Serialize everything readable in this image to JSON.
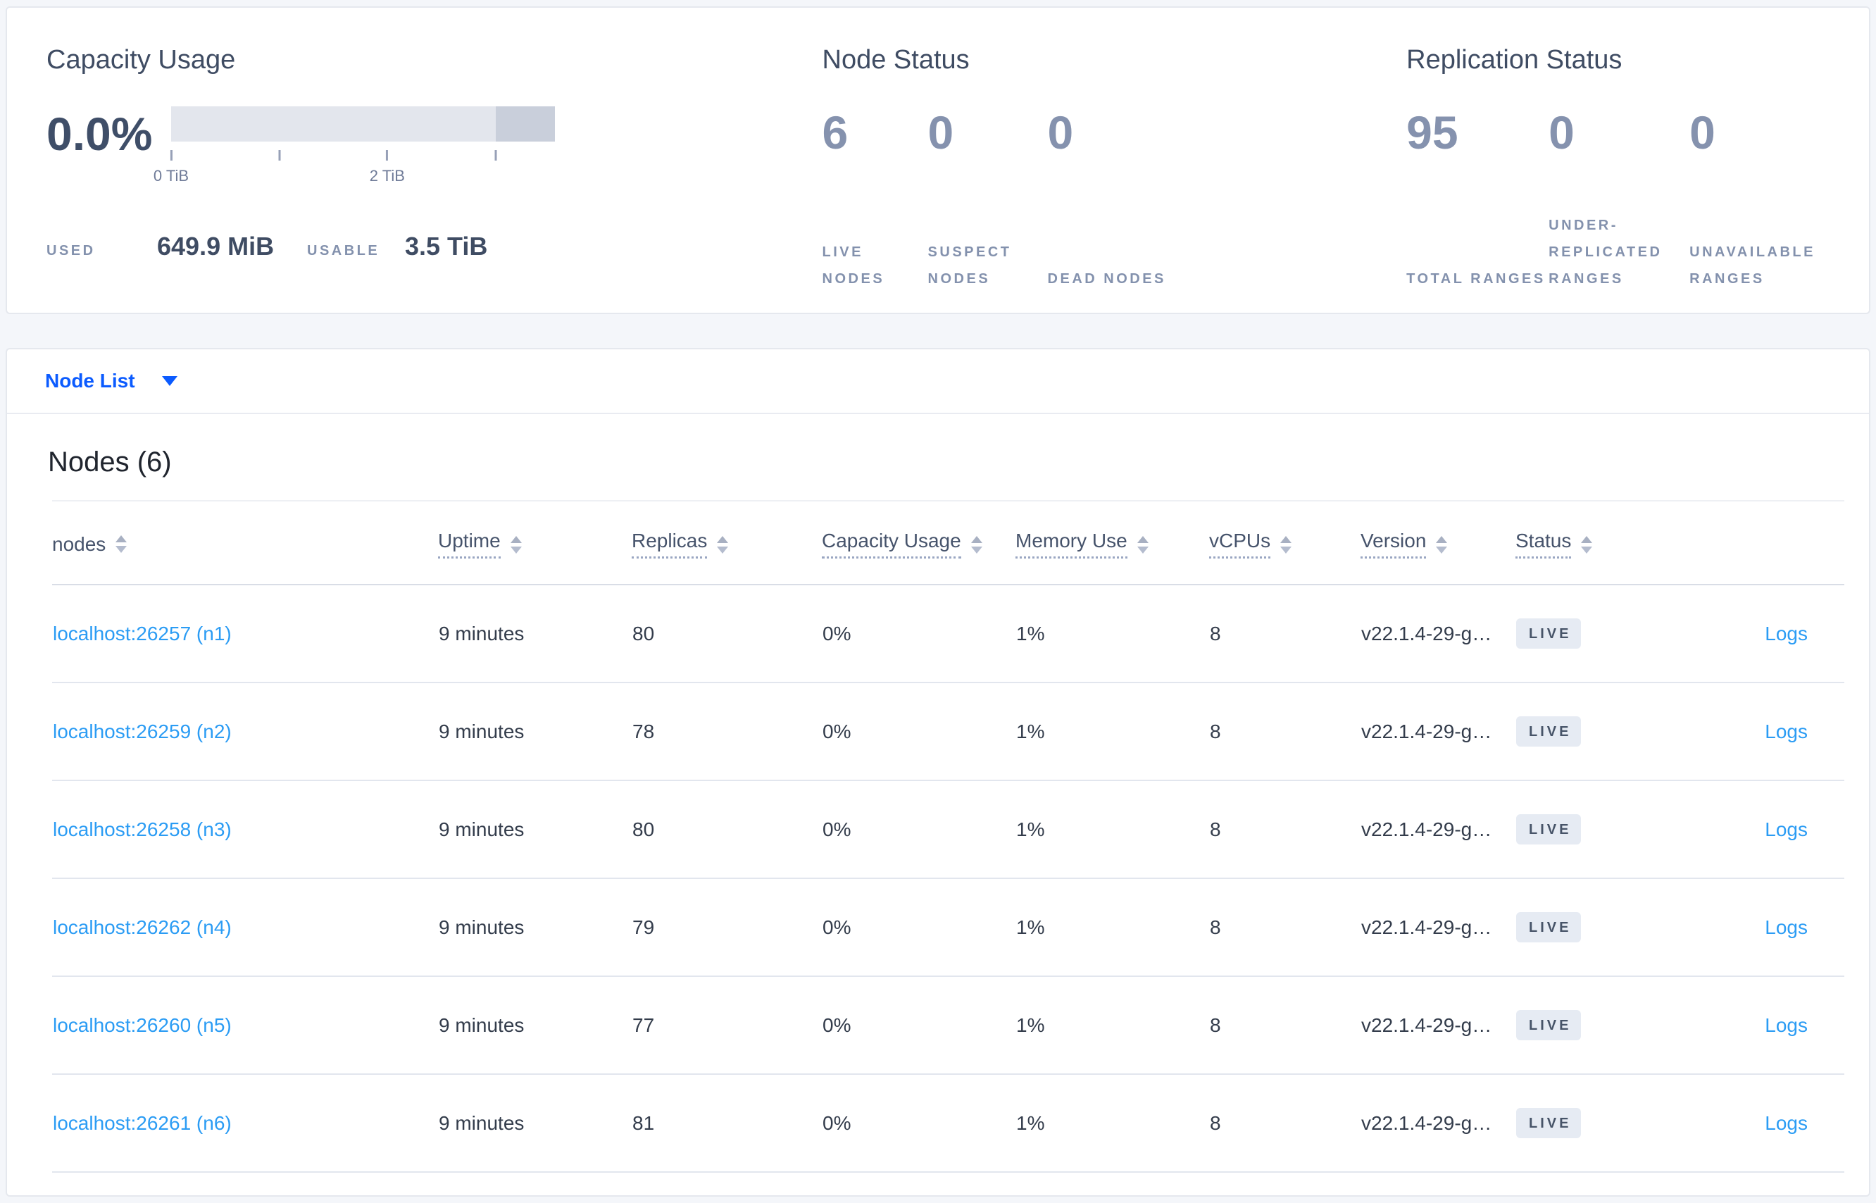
{
  "summary": {
    "capacity": {
      "title": "Capacity Usage",
      "used_percent": "0.0%",
      "used_label": "USED",
      "used_value": "649.9 MiB",
      "usable_label": "USABLE",
      "usable_value": "3.5 TiB",
      "chart": {
        "type": "bar",
        "unit": "TiB",
        "axis_range_tib": [
          0,
          3.55
        ],
        "ticks": [
          {
            "pos_pct": 0,
            "label": "0 TiB"
          },
          {
            "pos_pct": 28.2,
            "label": ""
          },
          {
            "pos_pct": 56.3,
            "label": "2 TiB"
          },
          {
            "pos_pct": 84.6,
            "label": ""
          }
        ],
        "dark_from_pct": 84.6,
        "track_color": "#e3e6ed",
        "segment_color": "#c9cfdb"
      }
    },
    "node_status": {
      "title": "Node Status",
      "stats": [
        {
          "value": "6",
          "label": "LIVE NODES"
        },
        {
          "value": "0",
          "label": "SUSPECT NODES"
        },
        {
          "value": "0",
          "label": "DEAD NODES"
        }
      ]
    },
    "replication": {
      "title": "Replication Status",
      "stats": [
        {
          "value": "95",
          "label": "TOTAL RANGES"
        },
        {
          "value": "0",
          "label": "UNDER-REPLICATED RANGES"
        },
        {
          "value": "0",
          "label": "UNAVAILABLE RANGES"
        }
      ]
    }
  },
  "view_switcher": {
    "selected": "Node List",
    "caret_icon": "caret-down-icon"
  },
  "nodes": {
    "title": "Nodes (6)",
    "columns": [
      {
        "label": "nodes",
        "sortable": true,
        "tooltip_underline": false
      },
      {
        "label": "Uptime",
        "sortable": true,
        "tooltip_underline": true
      },
      {
        "label": "Replicas",
        "sortable": true,
        "tooltip_underline": true
      },
      {
        "label": "Capacity Usage",
        "sortable": true,
        "tooltip_underline": true
      },
      {
        "label": "Memory Use",
        "sortable": true,
        "tooltip_underline": true
      },
      {
        "label": "vCPUs",
        "sortable": true,
        "tooltip_underline": true
      },
      {
        "label": "Version",
        "sortable": true,
        "tooltip_underline": true
      },
      {
        "label": "Status",
        "sortable": true,
        "tooltip_underline": true
      },
      {
        "label": "",
        "sortable": false,
        "tooltip_underline": false
      }
    ],
    "rows": [
      {
        "node": "localhost:26257 (n1)",
        "uptime": "9 minutes",
        "replicas": "80",
        "capacity_usage": "0%",
        "memory_use": "1%",
        "vcpus": "8",
        "version": "v22.1.4-29-g…",
        "status": "LIVE",
        "logs": "Logs"
      },
      {
        "node": "localhost:26259 (n2)",
        "uptime": "9 minutes",
        "replicas": "78",
        "capacity_usage": "0%",
        "memory_use": "1%",
        "vcpus": "8",
        "version": "v22.1.4-29-g…",
        "status": "LIVE",
        "logs": "Logs"
      },
      {
        "node": "localhost:26258 (n3)",
        "uptime": "9 minutes",
        "replicas": "80",
        "capacity_usage": "0%",
        "memory_use": "1%",
        "vcpus": "8",
        "version": "v22.1.4-29-g…",
        "status": "LIVE",
        "logs": "Logs"
      },
      {
        "node": "localhost:26262 (n4)",
        "uptime": "9 minutes",
        "replicas": "79",
        "capacity_usage": "0%",
        "memory_use": "1%",
        "vcpus": "8",
        "version": "v22.1.4-29-g…",
        "status": "LIVE",
        "logs": "Logs"
      },
      {
        "node": "localhost:26260 (n5)",
        "uptime": "9 minutes",
        "replicas": "77",
        "capacity_usage": "0%",
        "memory_use": "1%",
        "vcpus": "8",
        "version": "v22.1.4-29-g…",
        "status": "LIVE",
        "logs": "Logs"
      },
      {
        "node": "localhost:26261 (n6)",
        "uptime": "9 minutes",
        "replicas": "81",
        "capacity_usage": "0%",
        "memory_use": "1%",
        "vcpus": "8",
        "version": "v22.1.4-29-g…",
        "status": "LIVE",
        "logs": "Logs"
      }
    ]
  },
  "colors": {
    "accent_blue": "#0b5bff",
    "link_blue": "#2b9cf4",
    "text_dark": "#3f4c63",
    "text_muted": "#8592ae",
    "badge_bg": "#e6ebf3",
    "page_bg": "#f4f6fa"
  }
}
